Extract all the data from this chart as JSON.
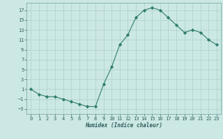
{
  "x": [
    0,
    1,
    2,
    3,
    4,
    5,
    6,
    7,
    8,
    9,
    10,
    11,
    12,
    13,
    14,
    15,
    16,
    17,
    18,
    19,
    20,
    21,
    22,
    23
  ],
  "y": [
    1,
    0,
    -0.5,
    -0.5,
    -1,
    -1.5,
    -2,
    -2.5,
    -2.5,
    2,
    5.5,
    10,
    12,
    15.5,
    17,
    17.5,
    17,
    15.5,
    14,
    12.5,
    13,
    12.5,
    11,
    10
  ],
  "line_color": "#2e7d6e",
  "marker": "D",
  "marker_size": 2.2,
  "bg_color": "#cce8e4",
  "grid_color": "#aacfca",
  "xlabel": "Humidex (Indice chaleur)",
  "xlim": [
    -0.5,
    23.5
  ],
  "ylim": [
    -4,
    18.5
  ],
  "yticks": [
    -3,
    -1,
    1,
    3,
    5,
    7,
    9,
    11,
    13,
    15,
    17
  ],
  "xticks": [
    0,
    1,
    2,
    3,
    4,
    5,
    6,
    7,
    8,
    9,
    10,
    11,
    12,
    13,
    14,
    15,
    16,
    17,
    18,
    19,
    20,
    21,
    22,
    23
  ],
  "xlabel_fontsize": 5.5,
  "tick_fontsize": 5,
  "spine_color": "#7aaaa5",
  "tick_color": "#2e5e5e"
}
